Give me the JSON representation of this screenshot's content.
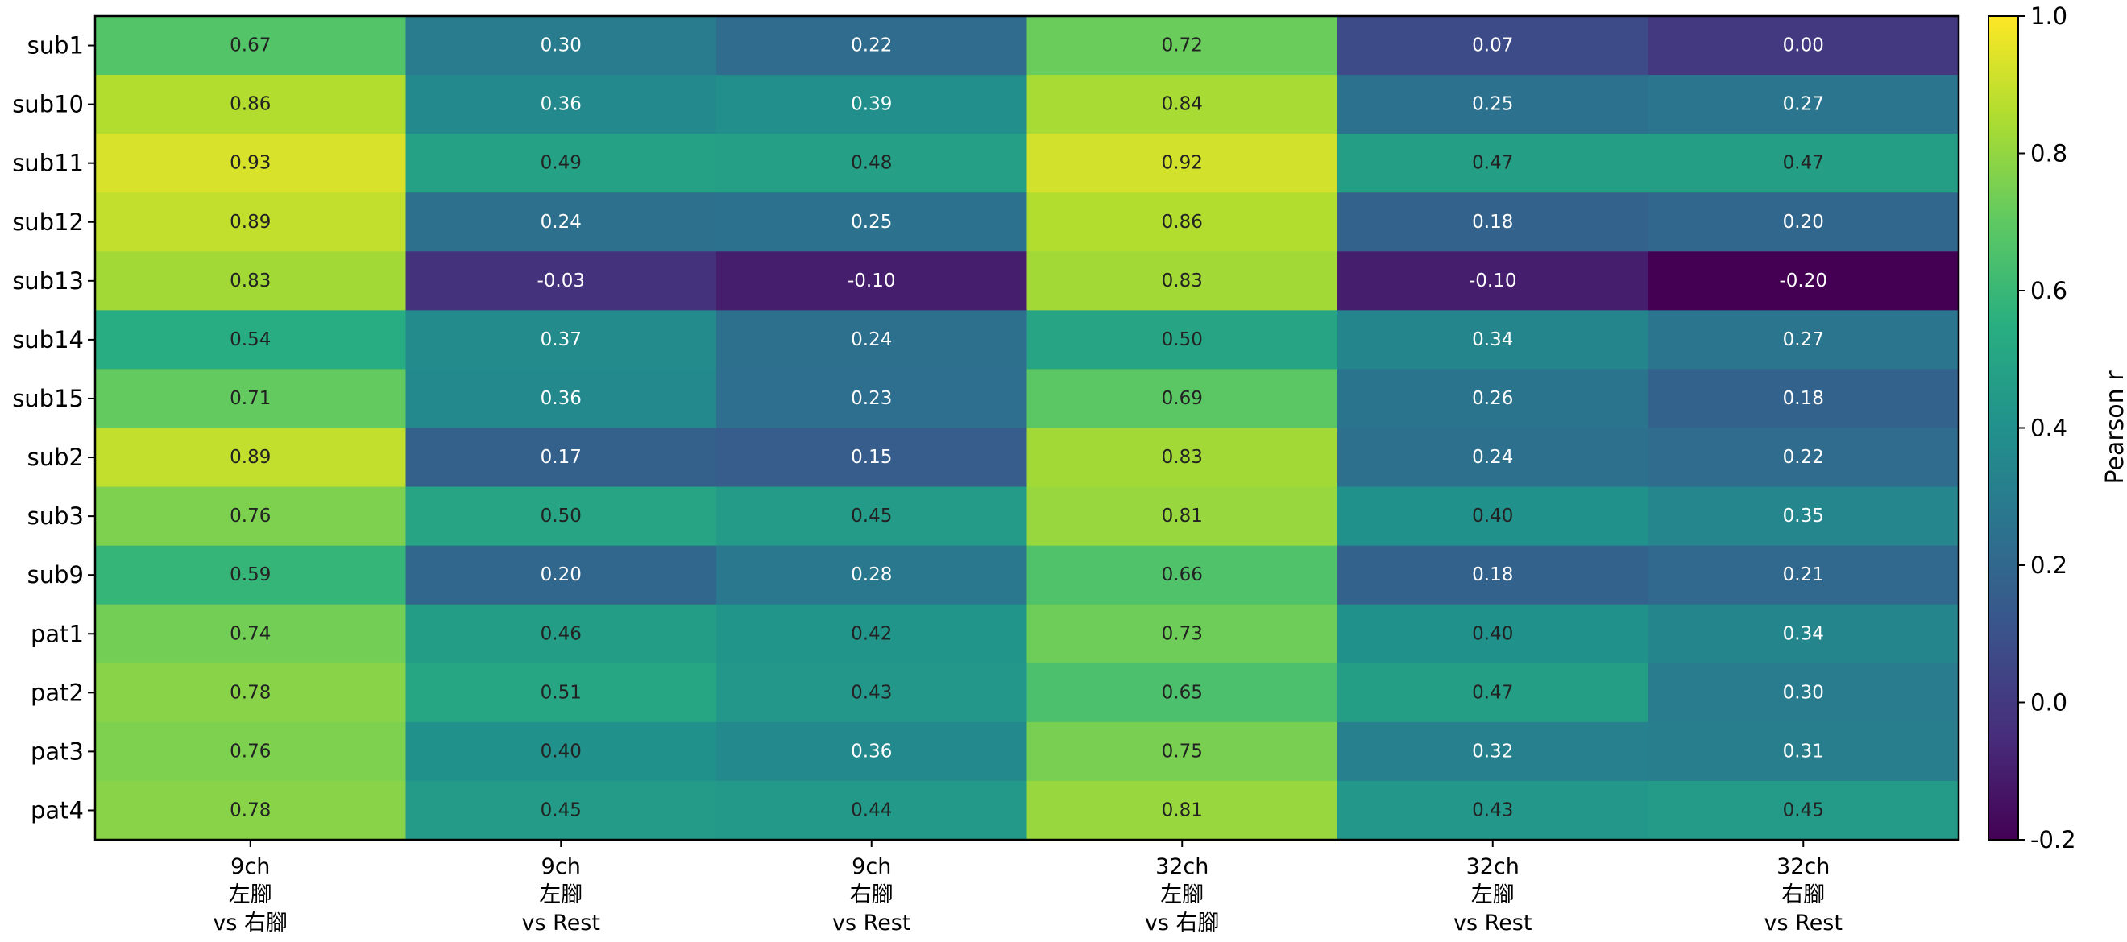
{
  "chart_data": {
    "type": "heatmap",
    "title": "",
    "xlabel": "",
    "ylabel": "",
    "rows": [
      "sub1",
      "sub10",
      "sub11",
      "sub12",
      "sub13",
      "sub14",
      "sub15",
      "sub2",
      "sub3",
      "sub9",
      "pat1",
      "pat2",
      "pat3",
      "pat4"
    ],
    "columns": [
      {
        "lines": [
          "9ch",
          "左腳",
          "vs 右腳"
        ]
      },
      {
        "lines": [
          "9ch",
          "左腳",
          "vs Rest"
        ]
      },
      {
        "lines": [
          "9ch",
          "右腳",
          "vs Rest"
        ]
      },
      {
        "lines": [
          "32ch",
          "左腳",
          "vs 右腳"
        ]
      },
      {
        "lines": [
          "32ch",
          "左腳",
          "vs Rest"
        ]
      },
      {
        "lines": [
          "32ch",
          "右腳",
          "vs Rest"
        ]
      }
    ],
    "values": [
      [
        0.67,
        0.3,
        0.22,
        0.72,
        0.07,
        0.0
      ],
      [
        0.86,
        0.36,
        0.39,
        0.84,
        0.25,
        0.27
      ],
      [
        0.93,
        0.49,
        0.48,
        0.92,
        0.47,
        0.47
      ],
      [
        0.89,
        0.24,
        0.25,
        0.86,
        0.18,
        0.2
      ],
      [
        0.83,
        -0.03,
        -0.1,
        0.83,
        -0.1,
        -0.2
      ],
      [
        0.54,
        0.37,
        0.24,
        0.5,
        0.34,
        0.27
      ],
      [
        0.71,
        0.36,
        0.23,
        0.69,
        0.26,
        0.18
      ],
      [
        0.89,
        0.17,
        0.15,
        0.83,
        0.24,
        0.22
      ],
      [
        0.76,
        0.5,
        0.45,
        0.81,
        0.4,
        0.35
      ],
      [
        0.59,
        0.2,
        0.28,
        0.66,
        0.18,
        0.21
      ],
      [
        0.74,
        0.46,
        0.42,
        0.73,
        0.4,
        0.34
      ],
      [
        0.78,
        0.51,
        0.43,
        0.65,
        0.47,
        0.3
      ],
      [
        0.76,
        0.4,
        0.36,
        0.75,
        0.32,
        0.31
      ],
      [
        0.78,
        0.45,
        0.44,
        0.81,
        0.43,
        0.45
      ]
    ],
    "value_format": "2 decimals",
    "colormap": "viridis",
    "vmin": -0.2,
    "vmax": 1.0,
    "colorbar": {
      "label": "Pearson r",
      "ticks": [
        -0.2,
        0.0,
        0.2,
        0.4,
        0.6,
        0.8,
        1.0
      ],
      "tick_labels": [
        "-0.2",
        "0.0",
        "0.2",
        "0.4",
        "0.6",
        "0.8",
        "1.0"
      ]
    },
    "annotation_text_color": {
      "light_cells": "#222222",
      "dark_cells": "#ffffff"
    },
    "grid": false
  }
}
